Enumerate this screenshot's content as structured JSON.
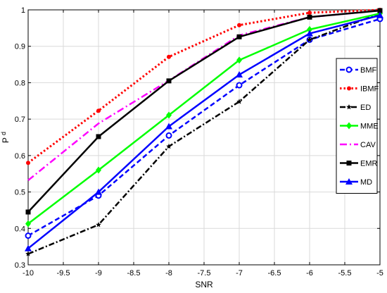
{
  "chart_data": {
    "type": "line",
    "title": "",
    "xlabel": "SNR",
    "ylabel": "P",
    "ylabel_subscript": "d",
    "xlim": [
      -10,
      -5
    ],
    "ylim": [
      0.3,
      1.0
    ],
    "x_ticks": [
      -10,
      -9.5,
      -9,
      -8.5,
      -8,
      -7.5,
      -7,
      -6.5,
      -6,
      -5.5,
      -5
    ],
    "x_tick_labels": [
      "-10",
      "-9.5",
      "-9",
      "-8.5",
      "-8",
      "-7.5",
      "-7",
      "-6.5",
      "-6",
      "-5.5",
      "-5"
    ],
    "y_ticks": [
      0.3,
      0.4,
      0.5,
      0.6,
      0.7,
      0.8,
      0.9,
      1.0
    ],
    "y_tick_labels": [
      "0.3",
      "0.4",
      "0.5",
      "0.6",
      "0.7",
      "0.8",
      "0.9",
      "1"
    ],
    "grid": true,
    "legend_position": "right",
    "x": [
      -10,
      -9,
      -8,
      -7,
      -6,
      -5
    ],
    "series": [
      {
        "name": "BMF",
        "values": [
          0.38,
          0.49,
          0.655,
          0.793,
          0.918,
          0.975
        ],
        "color": "#0000ff",
        "dash": "7,4",
        "marker": "open-circle",
        "width": 2.5
      },
      {
        "name": "IBMF",
        "values": [
          0.58,
          0.723,
          0.871,
          0.958,
          0.992,
          1.0
        ],
        "color": "#ff0000",
        "dash": "2.5,3",
        "marker": "dot",
        "width": 3
      },
      {
        "name": "ED",
        "values": [
          0.33,
          0.41,
          0.625,
          0.748,
          0.918,
          0.99
        ],
        "color": "#000000",
        "dash": "8,3,2,3",
        "marker": "star",
        "width": 2.5
      },
      {
        "name": "MME",
        "values": [
          0.413,
          0.56,
          0.711,
          0.862,
          0.946,
          0.99
        ],
        "color": "#00ff00",
        "dash": "",
        "marker": "diamond",
        "width": 2.5
      },
      {
        "name": "CAV",
        "values": [
          0.532,
          0.688,
          0.806,
          0.93,
          0.98,
          0.998
        ],
        "color": "#ff00ff",
        "dash": "10,4,2,4",
        "marker": "none",
        "width": 2.5
      },
      {
        "name": "EMR",
        "values": [
          0.445,
          0.652,
          0.805,
          0.926,
          0.98,
          0.998
        ],
        "color": "#000000",
        "dash": "",
        "marker": "square",
        "width": 2.5
      },
      {
        "name": "MD",
        "values": [
          0.345,
          0.5,
          0.68,
          0.822,
          0.935,
          0.985
        ],
        "color": "#0000ff",
        "dash": "",
        "marker": "triangle",
        "width": 2.5
      }
    ]
  }
}
